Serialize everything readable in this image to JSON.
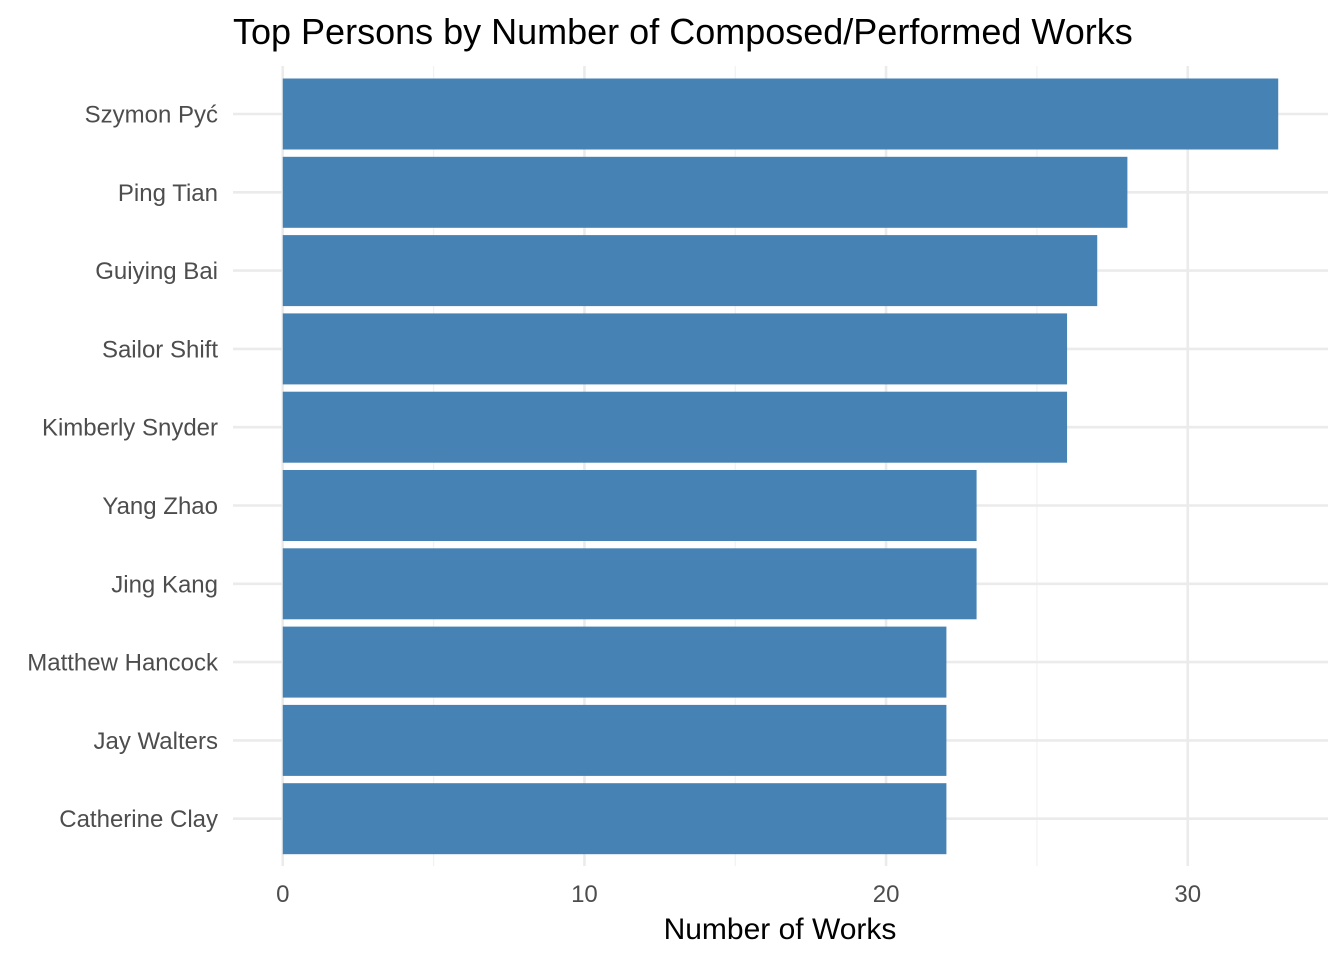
{
  "chart_data": {
    "type": "bar",
    "orientation": "horizontal",
    "title": "Top Persons by Number of Composed/Performed Works",
    "xlabel": "Number of Works",
    "ylabel": "",
    "categories": [
      "Szymon Pyć",
      "Ping Tian",
      "Guiying Bai",
      "Sailor Shift",
      "Kimberly Snyder",
      "Yang Zhao",
      "Jing Kang",
      "Matthew Hancock",
      "Jay Walters",
      "Catherine Clay"
    ],
    "values": [
      33,
      28,
      27,
      26,
      26,
      23,
      23,
      22,
      22,
      22
    ],
    "x_ticks": [
      0,
      10,
      20,
      30
    ],
    "x_tick_labels": [
      "0",
      "10",
      "20",
      "30"
    ],
    "xlim": [
      -1.65,
      34.65
    ],
    "grid": true,
    "legend": "none",
    "bar_color": "#4682b4"
  }
}
